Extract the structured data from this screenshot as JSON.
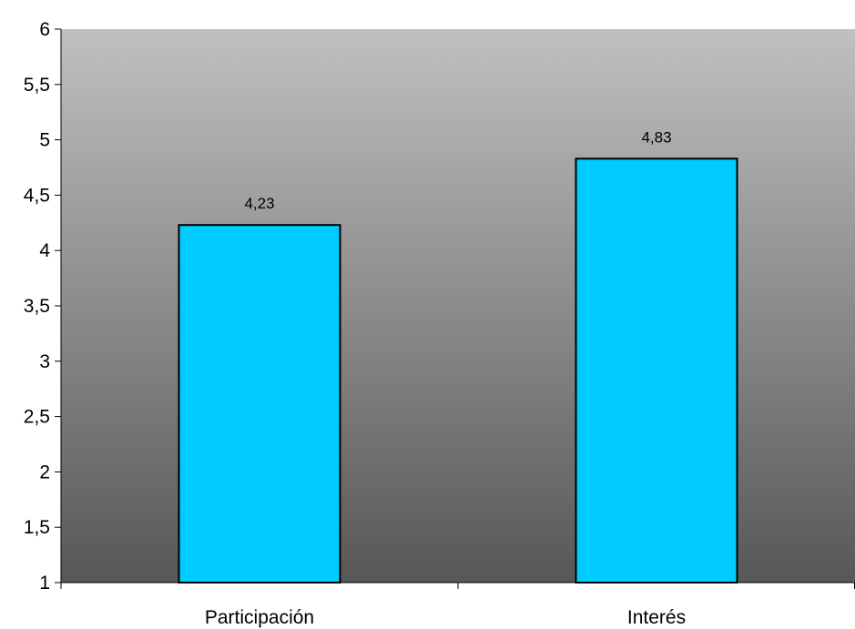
{
  "chart_data": {
    "type": "bar",
    "categories": [
      "Participación",
      "Interés"
    ],
    "values": [
      4.23,
      4.83
    ],
    "data_labels": [
      "4,23",
      "4,83"
    ],
    "ylim": [
      1,
      6
    ],
    "yticks": [
      1,
      1.5,
      2,
      2.5,
      3,
      3.5,
      4,
      4.5,
      5,
      5.5,
      6
    ],
    "ytick_labels": [
      "1",
      "1,5",
      "2",
      "2,5",
      "3",
      "3,5",
      "4",
      "4,5",
      "5",
      "5,5",
      "6"
    ],
    "title": "",
    "xlabel": "",
    "ylabel": "",
    "grid": false,
    "legend": "none",
    "colors": {
      "bar_fill": "#00ccff",
      "bar_stroke": "#000000",
      "plot_gradient_top": "#c0c0c0",
      "plot_gradient_bottom": "#575757"
    }
  }
}
